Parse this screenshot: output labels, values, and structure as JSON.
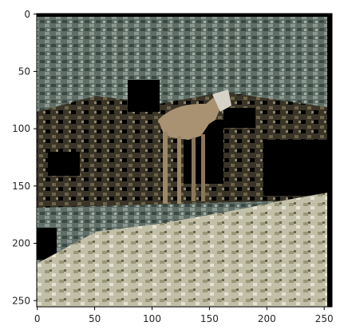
{
  "figure": {
    "subject": "photo-of-animal-in-brush",
    "x_ticks": [
      "0",
      "50",
      "100",
      "150",
      "200",
      "250"
    ],
    "y_ticks": [
      "0",
      "50",
      "100",
      "150",
      "200",
      "250"
    ],
    "x_range": [
      0,
      256
    ],
    "y_range": [
      0,
      256
    ],
    "y_inverted": true,
    "colors": {
      "sky_band": "#4a5a5e",
      "upper_brush": "#6f7f78",
      "mid_brush": "#3d3a2e",
      "ground": "#b8b49c",
      "animal": "#a89272",
      "shadow": "#000000"
    }
  }
}
